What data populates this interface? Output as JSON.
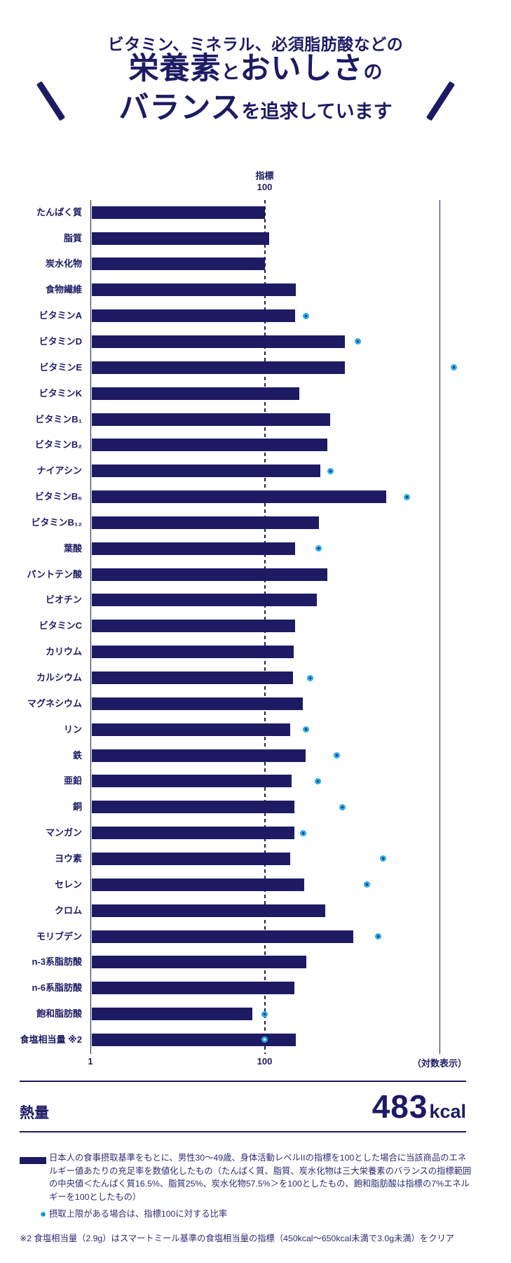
{
  "colors": {
    "navy": "#1e1b64",
    "cyan": "#29abe2",
    "dot_center": "#172a6e"
  },
  "title": {
    "line1": "ビタミン、ミネラル、必須脂肪酸などの",
    "line2_big1": "栄養素",
    "line2_small1": "と",
    "line2_big2": "おいしさ",
    "line2_small2": "の",
    "line3_big": "バランス",
    "line3_small": "を追求しています"
  },
  "chart": {
    "indicator_label_line1": "指標",
    "indicator_label_line2": "100",
    "axis_min_label": "1",
    "axis_mid_label": "100",
    "axis_scale_label": "（対数表示）"
  },
  "chart_data": {
    "type": "bar",
    "orientation": "horizontal",
    "x_scale": "log",
    "x_range": [
      1,
      10000
    ],
    "x_ticks": [
      1,
      100
    ],
    "reference_line": 100,
    "grid": false,
    "categories": [
      "たんぱく質",
      "脂質",
      "炭水化物",
      "食物繊維",
      "ビタミンA",
      "ビタミンD",
      "ビタミンE",
      "ビタミンK",
      "ビタミンB₁",
      "ビタミンB₂",
      "ナイアシン",
      "ビタミンB₆",
      "ビタミンB₁₂",
      "葉酸",
      "パントテン酸",
      "ビオチン",
      "ビタミンC",
      "カリウム",
      "カルシウム",
      "マグネシウム",
      "リン",
      "鉄",
      "亜鉛",
      "銅",
      "マンガン",
      "ヨウ素",
      "セレン",
      "クロム",
      "モリブデン",
      "n-3系脂肪酸",
      "n-6系脂肪酸",
      "飽和脂肪酸",
      "食塩相当量 ※2"
    ],
    "series": [
      {
        "name": "指標（エネルギー値あたりの充足率）",
        "values": [
          100,
          112,
          100,
          230,
          225,
          830,
          830,
          250,
          570,
          530,
          440,
          2500,
          420,
          222,
          530,
          400,
          225,
          215,
          213,
          275,
          196,
          295,
          204,
          218,
          218,
          196,
          285,
          500,
          1050,
          300,
          218,
          72,
          230
        ]
      },
      {
        "name": "摂取上限（指標100に対する比率）",
        "values": [
          null,
          null,
          null,
          null,
          300,
          1180,
          15000,
          null,
          null,
          null,
          570,
          4290,
          null,
          420,
          null,
          null,
          null,
          null,
          333,
          null,
          300,
          670,
          410,
          780,
          275,
          2310,
          1500,
          null,
          2000,
          null,
          null,
          100,
          100
        ]
      }
    ],
    "white_center_dots": [
      "食塩相当量 ※2"
    ]
  },
  "energy": {
    "label": "熱量",
    "value": "483",
    "unit": "kcal"
  },
  "legend": {
    "bar_note_lines": [
      "日本人の食事摂取基準をもとに、男性30〜49歳、身体活動レベルIIの指標を100とした場合に当該商品のエネ",
      "ルギー値あたりの充足率を数値化したもの（たんぱく質、脂質、炭水化物は三大栄養素のバランスの指標範囲",
      "の中央値＜たんぱく質16.5%、脂質25%、炭水化物57.5%＞を100としたもの、飽和脂肪酸は指標の7%エネル",
      "ギーを100としたもの）"
    ],
    "dot_note": "摂取上限がある場合は、指標100に対する比率",
    "footnote": "※2 食塩相当量（2.9g）はスマートミール基準の食塩相当量の指標（450kcal〜650kcal未満で3.0g未満）をクリア"
  }
}
